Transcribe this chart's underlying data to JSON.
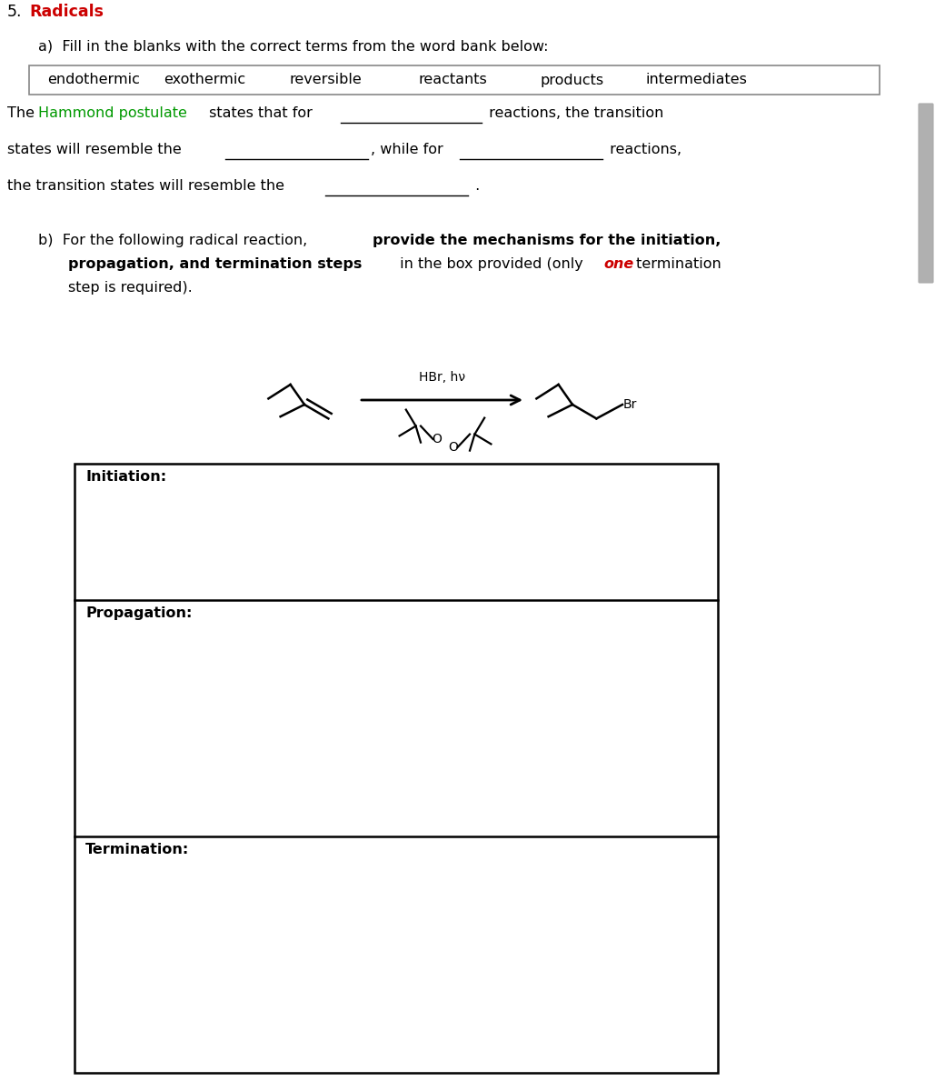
{
  "title_number": "5.",
  "title_text": "Radicals",
  "title_color": "#cc0000",
  "text_color": "#000000",
  "green_color": "#009900",
  "red_color": "#cc0000",
  "word_bank": [
    "endothermic",
    "exothermic",
    "reversible",
    "reactants",
    "products",
    "intermediates"
  ],
  "background_color": "#ffffff",
  "font_size": 11.5,
  "scrollbar_color": "#b0b0b0"
}
